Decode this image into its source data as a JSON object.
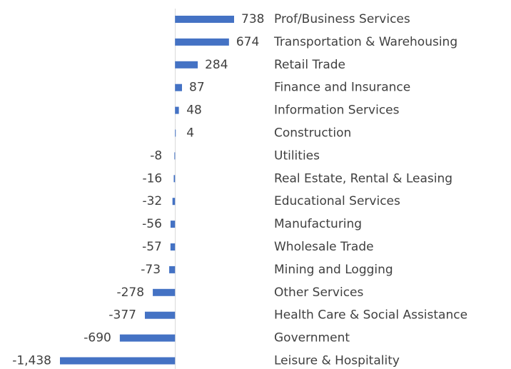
{
  "chart_data": {
    "type": "hbar",
    "orientation": "horizontal",
    "color": "#4472c4",
    "categories": [
      "Prof/Business Services",
      "Transportation & Warehousing",
      "Retail Trade",
      "Finance and Insurance",
      "Information Services",
      "Construction",
      "Utilities",
      "Real Estate, Rental & Leasing",
      "Educational Services",
      "Manufacturing",
      "Wholesale Trade",
      "Mining and Logging",
      "Other Services",
      "Health Care & Social Assistance",
      "Government",
      "Leisure & Hospitality"
    ],
    "values": [
      738,
      674,
      284,
      87,
      48,
      4,
      -8,
      -16,
      -32,
      -56,
      -57,
      -73,
      -278,
      -377,
      -690,
      -1438
    ],
    "value_labels": [
      "738",
      "674",
      "284",
      "87",
      "48",
      "4",
      "-8",
      "-16",
      "-32",
      "-56",
      "-57",
      "-73",
      "-278",
      "-377",
      "-690",
      "-1,438"
    ]
  }
}
